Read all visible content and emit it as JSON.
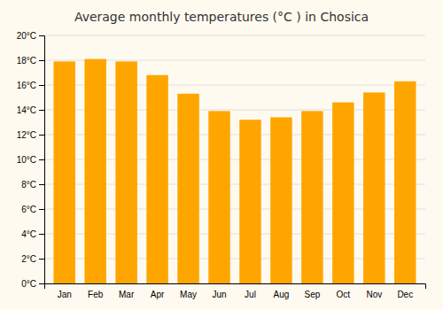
{
  "chart_data": {
    "type": "bar",
    "title": "Average monthly temperatures (°C ) in Chosica",
    "categories": [
      "Jan",
      "Feb",
      "Mar",
      "Apr",
      "May",
      "Jun",
      "Jul",
      "Aug",
      "Sep",
      "Oct",
      "Nov",
      "Dec"
    ],
    "values": [
      17.9,
      18.1,
      17.9,
      16.8,
      15.3,
      13.9,
      13.2,
      13.4,
      13.9,
      14.6,
      15.4,
      16.3
    ],
    "color": "#FFA500",
    "ylim": [
      0,
      20
    ],
    "yticks": [
      {
        "value": 0,
        "label": "0°C"
      },
      {
        "value": 2,
        "label": "2°C"
      },
      {
        "value": 4,
        "label": "4°C"
      },
      {
        "value": 6,
        "label": "6°C"
      },
      {
        "value": 8,
        "label": "8°C"
      },
      {
        "value": 10,
        "label": "10°C"
      },
      {
        "value": 12,
        "label": "12°C"
      },
      {
        "value": 14,
        "label": "14°C"
      },
      {
        "value": 16,
        "label": "16°C"
      },
      {
        "value": 18,
        "label": "18°C"
      },
      {
        "value": 20,
        "label": "20°C"
      }
    ],
    "grid": true
  }
}
